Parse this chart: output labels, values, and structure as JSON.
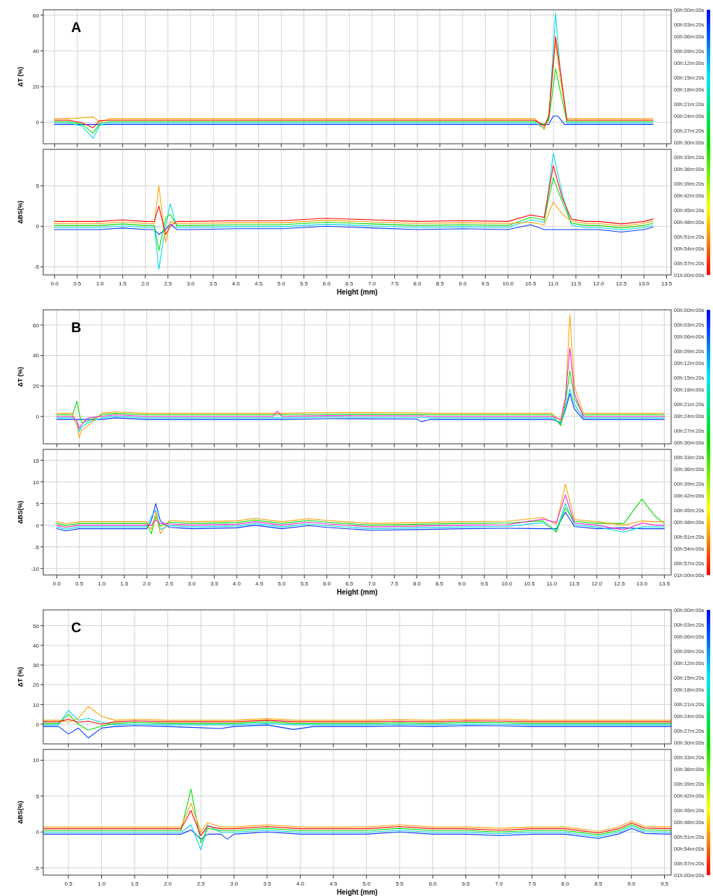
{
  "chart_data": [
    {
      "type": "line",
      "title": "A",
      "ylabel": "ΔT (%)",
      "xlim": [
        -0.25,
        13.6
      ],
      "ylim": [
        -12,
        63
      ],
      "yticks": [
        0,
        20,
        40,
        60
      ],
      "xticks": [
        {
          "value": 0,
          "label": null
        },
        {
          "value": 0.5,
          "label": null
        },
        {
          "value": 1,
          "label": null
        },
        {
          "value": 1.5,
          "label": null
        },
        {
          "value": 2,
          "label": null
        },
        {
          "value": 2.5,
          "label": null
        },
        {
          "value": 3,
          "label": null
        },
        {
          "value": 3.5,
          "label": null
        },
        {
          "value": 4,
          "label": null
        },
        {
          "value": 4.5,
          "label": null
        },
        {
          "value": 5,
          "label": null
        },
        {
          "value": 5.5,
          "label": null
        },
        {
          "value": 6,
          "label": null
        },
        {
          "value": 6.5,
          "label": null
        },
        {
          "value": 7,
          "label": null
        },
        {
          "value": 7.5,
          "label": null
        },
        {
          "value": 8,
          "label": null
        },
        {
          "value": 8.5,
          "label": null
        },
        {
          "value": 9,
          "label": null
        },
        {
          "value": 9.5,
          "label": null
        },
        {
          "value": 10,
          "label": null
        },
        {
          "value": 10.5,
          "label": null
        },
        {
          "value": 11,
          "label": null
        },
        {
          "value": 11.5,
          "label": null
        },
        {
          "value": 12,
          "label": null
        },
        {
          "value": 12.5,
          "label": null
        },
        {
          "value": 13,
          "label": null
        },
        {
          "value": 13.5,
          "label": null
        }
      ],
      "tick_labels": "y",
      "grid": true,
      "clim": [
        0,
        60
      ],
      "cticks": [
        {
          "value": 0,
          "label": "00h:00m:00s"
        },
        {
          "value": 3.333,
          "label": "00h:03m:20s"
        },
        {
          "value": 6,
          "label": "00h:06m:00s"
        },
        {
          "value": 9.333,
          "label": "00h:09m:20s"
        },
        {
          "value": 12,
          "label": "00h:12m:00s"
        },
        {
          "value": 15.333,
          "label": "00h:15m:20s"
        },
        {
          "value": 18,
          "label": "00h:18m:00s"
        },
        {
          "value": 21.333,
          "label": "00h:21m:20s"
        },
        {
          "value": 24,
          "label": "00h:24m:00s"
        },
        {
          "value": 27.333,
          "label": "00h:27m:20s"
        },
        {
          "value": 30,
          "label": "00h:30m:00s"
        },
        {
          "value": 33.333,
          "label": "00h:33m:20s"
        },
        {
          "value": 36,
          "label": "00h:36m:00s"
        },
        {
          "value": 39.333,
          "label": "00h:39m:20s"
        },
        {
          "value": 42,
          "label": "00h:42m:00s"
        },
        {
          "value": 45.333,
          "label": "00h:45m:20s"
        },
        {
          "value": 48,
          "label": "00h:48m:00s"
        },
        {
          "value": 51.333,
          "label": "00h:51m:20s"
        },
        {
          "value": 54,
          "label": "00h:54m:00s"
        },
        {
          "value": 57.333,
          "label": "00h:57m:20s"
        },
        {
          "value": 60,
          "label": "01h:00m:00s"
        }
      ],
      "series": [
        {
          "color": "#0033ff",
          "x": [
            0,
            3,
            6,
            9,
            10.6,
            10.9,
            11,
            11.1,
            11.25,
            13.2
          ],
          "values": [
            -1.2,
            -1.2,
            -1.2,
            -1.2,
            -1.2,
            -1.2,
            3.5,
            3.5,
            -1.2,
            -1.2
          ]
        },
        {
          "color": "#00d8e8",
          "x": [
            0,
            0.3,
            0.6,
            0.85,
            1,
            1.2,
            3,
            6,
            9,
            10.6,
            10.8,
            10.9,
            11.05,
            11.15,
            11.3,
            13.2
          ],
          "values": [
            -0.4,
            -0.4,
            -2,
            -9,
            -1.5,
            -0.4,
            -0.4,
            -0.4,
            -0.4,
            -0.4,
            -3.2,
            2,
            61,
            30,
            -0.4,
            -0.4
          ]
        },
        {
          "color": "#00dd00",
          "x": [
            0,
            0.3,
            0.6,
            0.85,
            1,
            1.2,
            3,
            6,
            9,
            10.6,
            10.8,
            10.9,
            11.05,
            11.15,
            11.3,
            13.2
          ],
          "values": [
            0.4,
            0.4,
            -1,
            -6,
            -0.6,
            0.4,
            0.4,
            0.4,
            0.4,
            0.4,
            -1.2,
            1,
            30,
            18,
            0.4,
            0.4
          ]
        },
        {
          "color": "#ffa000",
          "x": [
            0,
            0.3,
            0.6,
            0.85,
            1,
            1.2,
            3,
            6,
            9,
            10.6,
            10.8,
            10.9,
            11.05,
            11.15,
            11.3,
            13.2
          ],
          "values": [
            2,
            2,
            2.5,
            3,
            0.2,
            2,
            2,
            2,
            2,
            2,
            -4,
            4,
            45,
            25,
            2,
            2
          ]
        },
        {
          "color": "#ff0000",
          "x": [
            0,
            0.3,
            0.6,
            0.85,
            1,
            1.2,
            3,
            6,
            9,
            10.6,
            10.8,
            10.9,
            11.05,
            11.15,
            11.3,
            13.2
          ],
          "values": [
            1.2,
            1.2,
            -0.2,
            -3,
            1,
            1.2,
            1.2,
            1.2,
            1.2,
            1.2,
            -2.2,
            3,
            48,
            30,
            1.2,
            1.2
          ]
        }
      ]
    },
    {
      "type": "line",
      "ylabel": "ΔBS(%)",
      "xlabel": "Height (mm)",
      "xlim": [
        -0.25,
        13.6
      ],
      "ylim": [
        -6,
        9.5
      ],
      "yticks": [
        -5,
        0,
        5
      ],
      "xticks": [
        {
          "value": 0,
          "label": "0.0"
        },
        {
          "value": 0.5,
          "label": "0.5"
        },
        {
          "value": 1,
          "label": "1.0"
        },
        {
          "value": 1.5,
          "label": "1.5"
        },
        {
          "value": 2,
          "label": "2.0"
        },
        {
          "value": 2.5,
          "label": "2.5"
        },
        {
          "value": 3,
          "label": "3.0"
        },
        {
          "value": 3.5,
          "label": "3.5"
        },
        {
          "value": 4,
          "label": "4.0"
        },
        {
          "value": 4.5,
          "label": "4.5"
        },
        {
          "value": 5,
          "label": "5.0"
        },
        {
          "value": 5.5,
          "label": "5.5"
        },
        {
          "value": 6,
          "label": "6.0"
        },
        {
          "value": 6.5,
          "label": "6.5"
        },
        {
          "value": 7,
          "label": "7.0"
        },
        {
          "value": 7.5,
          "label": "7.5"
        },
        {
          "value": 8,
          "label": "8.0"
        },
        {
          "value": 8.5,
          "label": "8.5"
        },
        {
          "value": 9,
          "label": "9.0"
        },
        {
          "value": 9.5,
          "label": "9.5"
        },
        {
          "value": 10,
          "label": "10.0"
        },
        {
          "value": 10.5,
          "label": "10.5"
        },
        {
          "value": 11,
          "label": "11.0"
        },
        {
          "value": 11.5,
          "label": "11.5"
        },
        {
          "value": 12,
          "label": "12.0"
        },
        {
          "value": 12.5,
          "label": "12.5"
        },
        {
          "value": 13,
          "label": "13.0"
        },
        {
          "value": 13.5,
          "label": "13.5"
        }
      ],
      "grid": true,
      "x": [
        0,
        0.5,
        1,
        1.5,
        2,
        2.2,
        2.3,
        2.45,
        2.55,
        2.7,
        3,
        4,
        5,
        6,
        7,
        8,
        9,
        10,
        10.5,
        10.8,
        11,
        11.2,
        11.4,
        11.7,
        12,
        12.5,
        13,
        13.2
      ],
      "series": [
        {
          "color": "#0033ff",
          "values": [
            -0.4,
            -0.4,
            -0.4,
            -0.2,
            -0.4,
            -0.4,
            -1,
            -0.4,
            0.3,
            -0.4,
            -0.4,
            -0.3,
            -0.3,
            0,
            -0.2,
            -0.4,
            -0.3,
            -0.4,
            0.2,
            -0.4,
            -0.4,
            -0.4,
            -0.4,
            -0.4,
            -0.4,
            -0.7,
            -0.4,
            -0.1
          ]
        },
        {
          "color": "#00d8e8",
          "values": [
            -0.15,
            -0.15,
            -0.15,
            0.05,
            -0.15,
            -0.15,
            -5.3,
            0,
            2.8,
            -0.15,
            -0.15,
            -0.05,
            -0.05,
            0.25,
            0.05,
            -0.15,
            -0.05,
            -0.15,
            0.8,
            0.5,
            9,
            4,
            0.15,
            -0.15,
            -0.15,
            -0.45,
            -0.15,
            0.15
          ]
        },
        {
          "color": "#00dd00",
          "values": [
            0.1,
            0.1,
            0.1,
            0.3,
            0.1,
            0.1,
            -3,
            1,
            1.5,
            0.1,
            0.1,
            0.2,
            0.2,
            0.5,
            0.3,
            0.1,
            0.2,
            0.1,
            1.1,
            0.8,
            6,
            3,
            0.4,
            0.1,
            0.1,
            -0.2,
            0.1,
            0.4
          ]
        },
        {
          "color": "#ffa000",
          "values": [
            0.35,
            0.35,
            0.35,
            0.55,
            0.35,
            0.35,
            5,
            -2,
            0.6,
            0.35,
            0.35,
            0.45,
            0.45,
            0.75,
            0.55,
            0.35,
            0.45,
            0.35,
            0.5,
            0.2,
            3,
            1.5,
            0.65,
            0.35,
            0.35,
            0.05,
            0.35,
            0.65
          ]
        },
        {
          "color": "#ff0000",
          "values": [
            0.6,
            0.6,
            0.6,
            0.8,
            0.6,
            0.6,
            2.5,
            -1,
            0,
            0.6,
            0.6,
            0.7,
            0.7,
            1,
            0.8,
            0.6,
            0.7,
            0.6,
            1.4,
            1.1,
            7.5,
            3.5,
            0.9,
            0.6,
            0.6,
            0.3,
            0.6,
            0.9
          ]
        }
      ]
    },
    {
      "type": "line",
      "title": "B",
      "ylabel": "ΔT (%)",
      "xlim": [
        -0.3,
        13.65
      ],
      "ylim": [
        -18,
        70
      ],
      "yticks": [
        0,
        20,
        40,
        60
      ],
      "xticks": [
        {
          "value": 0,
          "label": null
        },
        {
          "value": 0.5,
          "label": null
        },
        {
          "value": 1,
          "label": null
        },
        {
          "value": 1.5,
          "label": null
        },
        {
          "value": 2,
          "label": null
        },
        {
          "value": 2.5,
          "label": null
        },
        {
          "value": 3,
          "label": null
        },
        {
          "value": 3.5,
          "label": null
        },
        {
          "value": 4,
          "label": null
        },
        {
          "value": 4.5,
          "label": null
        },
        {
          "value": 5,
          "label": null
        },
        {
          "value": 5.5,
          "label": null
        },
        {
          "value": 6,
          "label": null
        },
        {
          "value": 6.5,
          "label": null
        },
        {
          "value": 7,
          "label": null
        },
        {
          "value": 7.5,
          "label": null
        },
        {
          "value": 8,
          "label": null
        },
        {
          "value": 8.5,
          "label": null
        },
        {
          "value": 9,
          "label": null
        },
        {
          "value": 9.5,
          "label": null
        },
        {
          "value": 10,
          "label": null
        },
        {
          "value": 10.5,
          "label": null
        },
        {
          "value": 11,
          "label": null
        },
        {
          "value": 11.5,
          "label": null
        },
        {
          "value": 12,
          "label": null
        },
        {
          "value": 12.5,
          "label": null
        },
        {
          "value": 13,
          "label": null
        },
        {
          "value": 13.5,
          "label": null
        }
      ],
      "tick_labels": "y",
      "grid": true,
      "clim": [
        0,
        60
      ],
      "cticks": [
        {
          "value": 0,
          "label": "00h:00m:00s"
        },
        {
          "value": 3.333,
          "label": "00h:03m:20s"
        },
        {
          "value": 6,
          "label": "00h:06m:00s"
        },
        {
          "value": 9.333,
          "label": "00h:09m:20s"
        },
        {
          "value": 12,
          "label": "00h:12m:00s"
        },
        {
          "value": 15.333,
          "label": "00h:15m:20s"
        },
        {
          "value": 18,
          "label": "00h:18m:00s"
        },
        {
          "value": 21.333,
          "label": "00h:21m:20s"
        },
        {
          "value": 24,
          "label": "00h:24m:00s"
        },
        {
          "value": 27.333,
          "label": "00h:27m:20s"
        },
        {
          "value": 30,
          "label": "00h:30m:00s"
        },
        {
          "value": 33.333,
          "label": "00h:33m:20s"
        },
        {
          "value": 36,
          "label": "00h:36m:00s"
        },
        {
          "value": 39.333,
          "label": "00h:39m:20s"
        },
        {
          "value": 42,
          "label": "00h:42m:00s"
        },
        {
          "value": 45.333,
          "label": "00h:45m:20s"
        },
        {
          "value": 48,
          "label": "00h:48m:00s"
        },
        {
          "value": 51.333,
          "label": "00h:51m:20s"
        },
        {
          "value": 54,
          "label": "00h:54m:00s"
        },
        {
          "value": 57.333,
          "label": "00h:57m:20s"
        },
        {
          "value": 60,
          "label": "01h:00m:00s"
        }
      ],
      "x": [
        0,
        0.35,
        0.45,
        0.5,
        0.55,
        0.7,
        1,
        1.3,
        2,
        4,
        4.8,
        4.9,
        5,
        6,
        8,
        8.1,
        8.3,
        10,
        11,
        11.2,
        11.3,
        11.4,
        11.5,
        11.7,
        13.5
      ],
      "series": [
        {
          "color": "#0033ff",
          "values": [
            -2,
            -2,
            -2,
            -2,
            -2,
            -2,
            -2,
            -1,
            -2,
            -2,
            -2,
            -2,
            -2,
            -1.5,
            -1.7,
            -3.5,
            -2,
            -2,
            -2,
            -4,
            4,
            15,
            5,
            -2,
            -2
          ]
        },
        {
          "color": "#00d8e8",
          "values": [
            -1,
            -1,
            -5,
            -10,
            -7,
            -4,
            -1,
            0,
            -1,
            -1,
            -1,
            -1,
            -1,
            -0.5,
            -0.7,
            -0.7,
            -1,
            -1,
            -1,
            -5,
            5,
            18,
            8,
            -1,
            -1
          ]
        },
        {
          "color": "#00dd00",
          "values": [
            1,
            1,
            10,
            2,
            -4,
            -3,
            1,
            2,
            1,
            1,
            1,
            1,
            1,
            1.5,
            1.3,
            1.3,
            1,
            1,
            1,
            -6,
            8,
            30,
            12,
            1,
            1
          ]
        },
        {
          "color": "#ffa000",
          "values": [
            2,
            2,
            -6,
            -14,
            -9,
            -6,
            2,
            3,
            2,
            2,
            2,
            2,
            2,
            2.5,
            2.3,
            2.3,
            2,
            2,
            2,
            -3,
            10,
            67,
            20,
            2,
            2
          ]
        },
        {
          "color": "#ee22cc",
          "values": [
            0,
            0,
            -3,
            -8,
            -5.5,
            -1,
            0,
            1,
            0,
            0,
            0,
            3.5,
            0,
            0.5,
            0.3,
            0.3,
            0,
            0,
            0,
            -2,
            12,
            45,
            15,
            0,
            0
          ]
        }
      ]
    },
    {
      "type": "line",
      "ylabel": "ΔBS(%)",
      "xlabel": "Height (mm)",
      "xlim": [
        -0.3,
        13.65
      ],
      "ylim": [
        -11.5,
        17.5
      ],
      "yticks": [
        -10,
        -5,
        0,
        5,
        10,
        15
      ],
      "xticks": [
        {
          "value": 0,
          "label": "0.0"
        },
        {
          "value": 0.5,
          "label": "0.5"
        },
        {
          "value": 1,
          "label": "1.0"
        },
        {
          "value": 1.5,
          "label": "1.5"
        },
        {
          "value": 2,
          "label": "2.0"
        },
        {
          "value": 2.5,
          "label": "2.5"
        },
        {
          "value": 3,
          "label": "3.0"
        },
        {
          "value": 3.5,
          "label": "3.5"
        },
        {
          "value": 4,
          "label": "4.0"
        },
        {
          "value": 4.5,
          "label": "4.5"
        },
        {
          "value": 5,
          "label": "5.0"
        },
        {
          "value": 5.5,
          "label": "5.5"
        },
        {
          "value": 6,
          "label": "6.0"
        },
        {
          "value": 6.5,
          "label": "6.5"
        },
        {
          "value": 7,
          "label": "7.0"
        },
        {
          "value": 7.5,
          "label": "7.5"
        },
        {
          "value": 8,
          "label": "8.0"
        },
        {
          "value": 8.5,
          "label": "8.5"
        },
        {
          "value": 9,
          "label": "9.0"
        },
        {
          "value": 9.5,
          "label": "9.5"
        },
        {
          "value": 10,
          "label": "10.0"
        },
        {
          "value": 10.5,
          "label": "10.5"
        },
        {
          "value": 11,
          "label": "11.0"
        },
        {
          "value": 11.5,
          "label": "11.5"
        },
        {
          "value": 12,
          "label": "12.0"
        },
        {
          "value": 12.5,
          "label": "12.5"
        },
        {
          "value": 13,
          "label": "13.0"
        },
        {
          "value": 13.5,
          "label": "13.5"
        }
      ],
      "grid": true,
      "x": [
        0,
        0.2,
        0.5,
        1,
        1.5,
        2,
        2.1,
        2.2,
        2.3,
        2.5,
        3,
        4,
        4.4,
        5,
        5.6,
        6,
        7,
        8,
        9,
        10,
        10.8,
        11.1,
        11.3,
        11.5,
        12,
        12.6,
        13,
        13.3,
        13.5
      ],
      "series": [
        {
          "color": "#0033ff",
          "values": [
            -0.8,
            -1.3,
            -0.8,
            -0.8,
            -0.8,
            -0.8,
            1,
            5,
            1,
            -0.5,
            -0.8,
            -0.6,
            0,
            -0.8,
            -0.1,
            -0.5,
            -1.2,
            -1,
            -0.8,
            -0.7,
            -0.8,
            -0.8,
            3,
            -0.3,
            -0.8,
            -0.6,
            -0.8,
            -0.8,
            -0.8
          ]
        },
        {
          "color": "#00d8e8",
          "values": [
            -0.4,
            -0.9,
            -0.4,
            -0.4,
            -0.4,
            -0.4,
            2,
            3.5,
            -1,
            -0.1,
            -0.4,
            -0.2,
            0.4,
            -0.4,
            0.3,
            -0.1,
            -0.8,
            -0.6,
            -0.4,
            -0.3,
            0.6,
            -1.2,
            5,
            0.1,
            -0.4,
            -1.6,
            -0.4,
            -0.4,
            -0.4
          ]
        },
        {
          "color": "#00dd00",
          "values": [
            0.4,
            -0.1,
            0.4,
            0.4,
            0.4,
            0.4,
            -2,
            2,
            -0.2,
            0.7,
            0.4,
            0.6,
            1.2,
            0.4,
            1.1,
            0.7,
            0,
            0.2,
            0.4,
            0.5,
            1,
            -1.6,
            4,
            0.9,
            0.4,
            0.4,
            6,
            2,
            0.4
          ]
        },
        {
          "color": "#ffa000",
          "values": [
            0.8,
            0.3,
            0.8,
            0.8,
            0.8,
            0.8,
            -1,
            3,
            -2,
            1.1,
            0.8,
            1,
            1.6,
            0.8,
            1.5,
            1.1,
            0.4,
            0.6,
            0.8,
            0.9,
            1.8,
            0.2,
            9.5,
            1.3,
            0.8,
            0,
            1,
            0.8,
            0.8
          ]
        },
        {
          "color": "#ee22cc",
          "values": [
            0,
            -0.5,
            0,
            0,
            0,
            0,
            0,
            1.2,
            0.4,
            0.3,
            0,
            0.2,
            0.8,
            0,
            0.7,
            0.3,
            -0.4,
            -0.2,
            0,
            0.1,
            1.4,
            0.6,
            7,
            0.5,
            0,
            -1.1,
            0.5,
            0,
            0
          ]
        }
      ]
    },
    {
      "type": "line",
      "title": "C",
      "ylabel": "ΔT (%)",
      "xlim": [
        0.12,
        9.6
      ],
      "ylim": [
        -10,
        58
      ],
      "yticks": [
        0,
        10,
        20,
        30,
        40,
        50
      ],
      "xticks": [
        {
          "value": 0.5,
          "label": null
        },
        {
          "value": 1,
          "label": null
        },
        {
          "value": 1.5,
          "label": null
        },
        {
          "value": 2,
          "label": null
        },
        {
          "value": 2.5,
          "label": null
        },
        {
          "value": 3,
          "label": null
        },
        {
          "value": 3.5,
          "label": null
        },
        {
          "value": 4,
          "label": null
        },
        {
          "value": 4.5,
          "label": null
        },
        {
          "value": 5,
          "label": null
        },
        {
          "value": 5.5,
          "label": null
        },
        {
          "value": 6,
          "label": null
        },
        {
          "value": 6.5,
          "label": null
        },
        {
          "value": 7,
          "label": null
        },
        {
          "value": 7.5,
          "label": null
        },
        {
          "value": 8,
          "label": null
        },
        {
          "value": 8.5,
          "label": null
        },
        {
          "value": 9,
          "label": null
        },
        {
          "value": 9.5,
          "label": null
        }
      ],
      "tick_labels": "y",
      "grid": true,
      "clim": [
        0,
        60
      ],
      "cticks": [
        {
          "value": 0,
          "label": "00h:00m:00s"
        },
        {
          "value": 3.333,
          "label": "00h:03m:20s"
        },
        {
          "value": 6,
          "label": "00h:06m:00s"
        },
        {
          "value": 9.333,
          "label": "00h:09m:20s"
        },
        {
          "value": 12,
          "label": "00h:12m:00s"
        },
        {
          "value": 15.333,
          "label": "00h:15m:20s"
        },
        {
          "value": 18,
          "label": "00h:18m:00s"
        },
        {
          "value": 21.333,
          "label": "00h:21m:20s"
        },
        {
          "value": 24,
          "label": "00h:24m:00s"
        },
        {
          "value": 27.333,
          "label": "00h:27m:20s"
        },
        {
          "value": 30,
          "label": "00h:30m:00s"
        },
        {
          "value": 33.333,
          "label": "00h:33m:20s"
        },
        {
          "value": 36,
          "label": "00h:36m:00s"
        },
        {
          "value": 39.333,
          "label": "00h:39m:20s"
        },
        {
          "value": 42,
          "label": "00h:42m:00s"
        },
        {
          "value": 45.333,
          "label": "00h:45m:20s"
        },
        {
          "value": 48,
          "label": "00h:48m:00s"
        },
        {
          "value": 51.333,
          "label": "00h:51m:20s"
        },
        {
          "value": 54,
          "label": "00h:54m:00s"
        },
        {
          "value": 57.333,
          "label": "00h:57m:20s"
        },
        {
          "value": 60,
          "label": "01h:00m:00s"
        }
      ],
      "x": [
        0.12,
        0.35,
        0.5,
        0.65,
        0.8,
        1,
        1.2,
        1.5,
        2,
        2.8,
        3,
        3.5,
        3.9,
        4.2,
        5,
        5.5,
        6,
        6.5,
        7,
        7.5,
        8,
        8.5,
        9,
        9.6
      ],
      "series": [
        {
          "color": "#0033ff",
          "values": [
            -1.2,
            -1.2,
            -5,
            -2,
            -7,
            -2,
            -1.2,
            -0.7,
            -1.2,
            -2.2,
            -1.2,
            -0.4,
            -2.7,
            -1.2,
            -1.2,
            -0.9,
            -1.2,
            -0.7,
            -0.8,
            -1.2,
            -1.2,
            -1.2,
            -1.2,
            -1.2
          ]
        },
        {
          "color": "#00d8e8",
          "values": [
            -0.4,
            -0.4,
            7,
            2,
            3,
            1,
            -0.4,
            0.1,
            -0.4,
            -0.4,
            -0.4,
            0.4,
            -0.4,
            -0.4,
            -0.4,
            -0.1,
            -0.4,
            0.1,
            0,
            -0.4,
            -0.4,
            -0.4,
            -0.4,
            -0.4
          ]
        },
        {
          "color": "#00dd00",
          "values": [
            0.4,
            0.4,
            5,
            0,
            -3,
            -1,
            0.4,
            0.9,
            0.4,
            0.4,
            0.4,
            1.2,
            0.4,
            0.4,
            0.4,
            0.7,
            0.4,
            0.9,
            0.8,
            0.4,
            0.4,
            0.4,
            0.4,
            0.4
          ]
        },
        {
          "color": "#ffa000",
          "values": [
            2,
            2,
            1,
            3,
            9,
            4,
            2,
            2.5,
            2,
            2,
            2,
            2.8,
            2,
            2,
            2,
            2.3,
            2,
            2.5,
            2.4,
            2,
            2,
            2,
            2,
            2
          ]
        },
        {
          "color": "#ff0000",
          "values": [
            1.2,
            1.2,
            2.5,
            1,
            1.5,
            0,
            1.2,
            1.7,
            1.2,
            1.2,
            1.2,
            2,
            1.2,
            1.2,
            1.2,
            1.5,
            1.2,
            1.7,
            1.6,
            1.2,
            1.2,
            1.2,
            1.2,
            1.2
          ]
        }
      ]
    },
    {
      "type": "line",
      "ylabel": "ΔBS(%)",
      "xlabel": "Height (mm)",
      "xlim": [
        0.12,
        9.6
      ],
      "ylim": [
        -6,
        11.5
      ],
      "yticks": [
        -5,
        0,
        5,
        10
      ],
      "xticks": [
        {
          "value": 0.5,
          "label": "0.5"
        },
        {
          "value": 1,
          "label": "1.0"
        },
        {
          "value": 1.5,
          "label": "1.5"
        },
        {
          "value": 2,
          "label": "2.0"
        },
        {
          "value": 2.5,
          "label": "2.5"
        },
        {
          "value": 3,
          "label": "3.0"
        },
        {
          "value": 3.5,
          "label": "3.5"
        },
        {
          "value": 4,
          "label": "4.0"
        },
        {
          "value": 4.5,
          "label": "4.5"
        },
        {
          "value": 5,
          "label": "5.0"
        },
        {
          "value": 5.5,
          "label": "5.5"
        },
        {
          "value": 6,
          "label": "6.0"
        },
        {
          "value": 6.5,
          "label": "6.5"
        },
        {
          "value": 7,
          "label": "7.0"
        },
        {
          "value": 7.5,
          "label": "7.5"
        },
        {
          "value": 8,
          "label": "8.0"
        },
        {
          "value": 8.5,
          "label": "8.5"
        },
        {
          "value": 9,
          "label": "9.0"
        },
        {
          "value": 9.5,
          "label": "9.5"
        }
      ],
      "grid": true,
      "x": [
        0.12,
        0.5,
        1,
        1.5,
        2,
        2.2,
        2.35,
        2.5,
        2.6,
        2.8,
        2.9,
        3,
        3.5,
        4,
        4.5,
        5,
        5.5,
        6,
        6.5,
        7,
        7.5,
        8,
        8.5,
        8.8,
        9,
        9.2,
        9.6
      ],
      "series": [
        {
          "color": "#0033ff",
          "values": [
            -0.3,
            -0.3,
            -0.3,
            -0.3,
            -0.3,
            -0.3,
            0.3,
            -1,
            -0.3,
            -0.3,
            -1,
            -0.3,
            0,
            -0.3,
            -0.3,
            -0.3,
            0,
            -0.3,
            -0.3,
            -0.5,
            -0.3,
            -0.3,
            -0.9,
            -0.3,
            0.5,
            -0.2,
            -0.3
          ]
        },
        {
          "color": "#00d8e8",
          "values": [
            -0.05,
            -0.05,
            -0.05,
            -0.05,
            -0.05,
            -0.05,
            1,
            -2.5,
            1,
            -0.05,
            -0.05,
            -0.05,
            0.25,
            -0.05,
            -0.05,
            -0.05,
            0.25,
            -0.05,
            -0.05,
            -0.25,
            -0.05,
            -0.05,
            -0.65,
            -0.05,
            0.75,
            0.05,
            -0.05
          ]
        },
        {
          "color": "#00dd00",
          "values": [
            0.2,
            0.2,
            0.2,
            0.2,
            0.2,
            0.2,
            6,
            -1.5,
            0.5,
            0.2,
            0.2,
            0.2,
            0.5,
            0.2,
            0.2,
            0.2,
            0.5,
            0.2,
            0.2,
            0,
            0.2,
            0.2,
            -0.4,
            0.2,
            1,
            0.3,
            0.2
          ]
        },
        {
          "color": "#ffa000",
          "values": [
            0.7,
            0.7,
            0.7,
            0.7,
            0.7,
            0.7,
            4,
            0,
            1.3,
            0.7,
            0.7,
            0.7,
            1,
            0.7,
            0.7,
            0.7,
            1,
            0.7,
            0.7,
            0.5,
            0.7,
            0.7,
            0.1,
            0.7,
            1.5,
            0.8,
            0.7
          ]
        },
        {
          "color": "#ff0000",
          "values": [
            0.45,
            0.45,
            0.45,
            0.45,
            0.45,
            0.45,
            3,
            -0.5,
            0.8,
            0.45,
            0.45,
            0.45,
            0.75,
            0.45,
            0.45,
            0.45,
            0.75,
            0.45,
            0.45,
            0.25,
            0.45,
            0.45,
            -0.15,
            0.45,
            1.25,
            0.55,
            0.45
          ]
        }
      ]
    }
  ]
}
